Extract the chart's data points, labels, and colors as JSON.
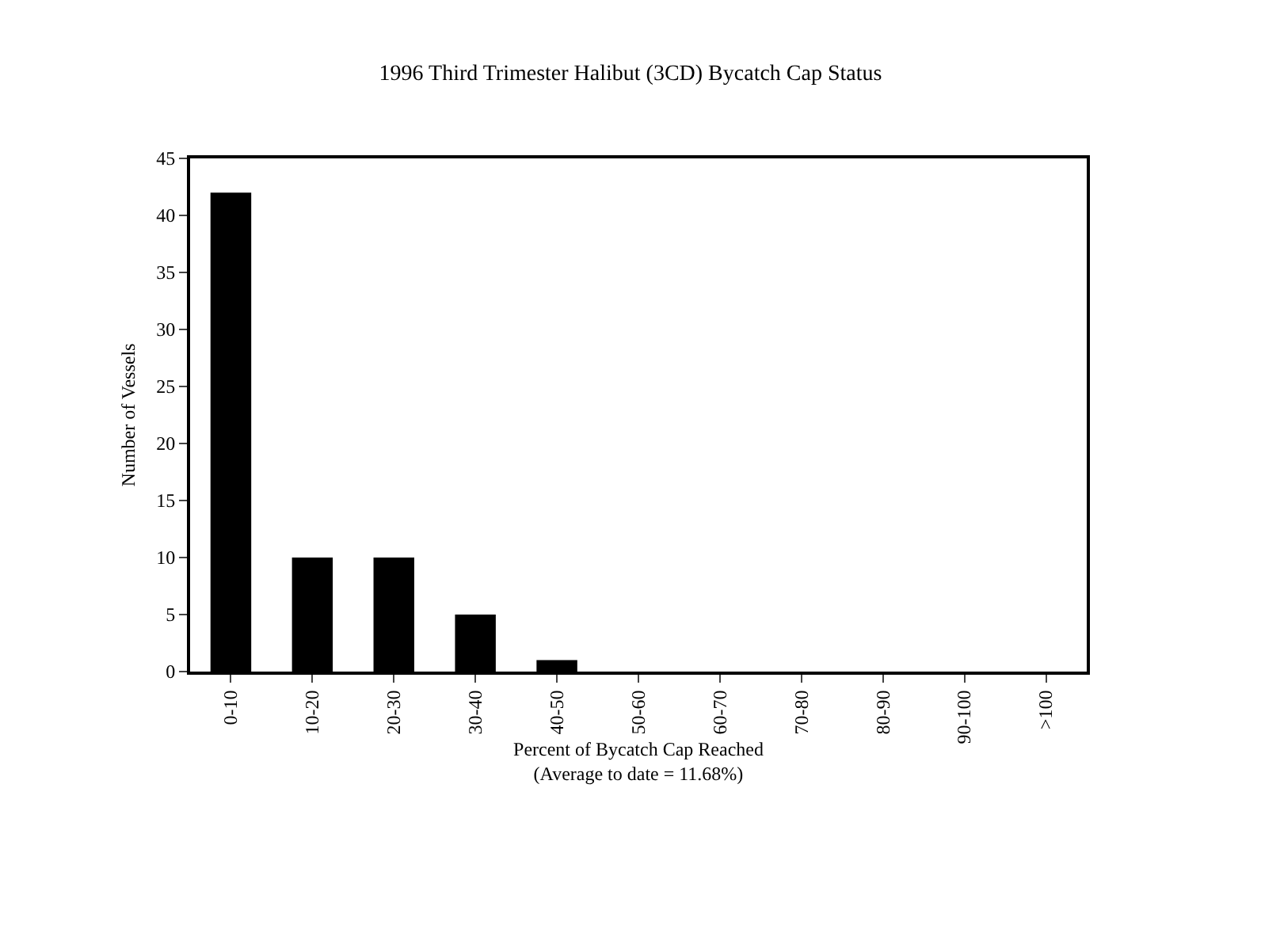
{
  "chart_data": {
    "type": "bar",
    "title": "1996 Third Trimester Halibut (3CD) Bycatch Cap Status",
    "xlabel": "Percent of Bycatch Cap Reached\n(Average to date = 11.68%)",
    "ylabel": "Number of Vessels",
    "categories": [
      "0-10",
      "10-20",
      "20-30",
      "30-40",
      "40-50",
      "50-60",
      "60-70",
      "70-80",
      "80-90",
      "90-100",
      ">100"
    ],
    "values": [
      42,
      10,
      10,
      5,
      1,
      0,
      0,
      0,
      0,
      0,
      0
    ],
    "color": "#000000",
    "ylim": [
      0,
      45
    ],
    "yticks": [
      0,
      5,
      10,
      15,
      20,
      25,
      30,
      35,
      40,
      45
    ],
    "grid": false
  }
}
